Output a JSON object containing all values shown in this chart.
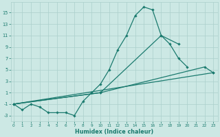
{
  "xlabel": "Humidex (Indice chaleur)",
  "bg_color": "#cce8e4",
  "grid_color": "#aacfcb",
  "line_color": "#1a7a6e",
  "x_all": [
    0,
    1,
    2,
    3,
    4,
    5,
    6,
    7,
    8,
    9,
    10,
    11,
    12,
    13,
    14,
    15,
    16,
    17,
    18,
    19,
    20,
    21,
    22,
    23
  ],
  "line1": [
    -1,
    -2,
    -1,
    -1.5,
    -2.5,
    -2.5,
    -2.5,
    -3,
    -0.5,
    1,
    2.5,
    5,
    8.5,
    11,
    14.5,
    16,
    15.5,
    11,
    9.5,
    7,
    5.5,
    null,
    null,
    null
  ],
  "line2": [
    -1,
    null,
    null,
    null,
    null,
    null,
    null,
    null,
    null,
    null,
    null,
    null,
    null,
    null,
    null,
    null,
    null,
    null,
    null,
    null,
    null,
    null,
    null,
    4.5
  ],
  "line3": [
    -1,
    null,
    null,
    null,
    null,
    null,
    null,
    null,
    null,
    null,
    1,
    null,
    null,
    null,
    null,
    null,
    null,
    11,
    null,
    9.5,
    null,
    null,
    null,
    null
  ],
  "line4": [
    -1,
    null,
    null,
    null,
    null,
    null,
    null,
    null,
    null,
    null,
    1,
    null,
    null,
    null,
    null,
    null,
    null,
    null,
    null,
    null,
    null,
    null,
    5.5,
    4.5
  ],
  "xlim": [
    -0.3,
    23.5
  ],
  "ylim": [
    -4.0,
    16.8
  ],
  "yticks": [
    -3,
    -1,
    1,
    3,
    5,
    7,
    9,
    11,
    13,
    15
  ],
  "xticks": [
    0,
    1,
    2,
    3,
    4,
    5,
    6,
    7,
    8,
    9,
    10,
    11,
    12,
    13,
    14,
    15,
    16,
    17,
    18,
    19,
    20,
    21,
    22,
    23
  ]
}
